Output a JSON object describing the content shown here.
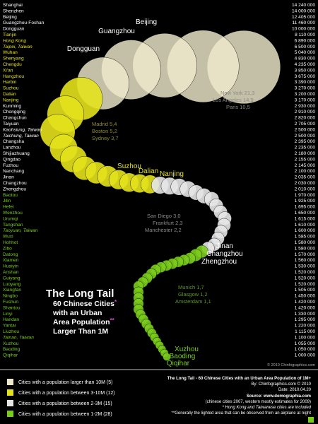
{
  "header": {
    "title": "The Long Tail",
    "lines": [
      "60 Chinese Cities",
      "with an Urban",
      "Area Population",
      "Larger Than 1M"
    ],
    "marks": [
      "*",
      "**"
    ],
    "credit": "© 2010 Chinfographics.com"
  },
  "legend": [
    {
      "label": "Cities with a population larger than 10M (5)",
      "color": "#efe9cc"
    },
    {
      "label": "Cities with a population between 3-10M (12)",
      "color": "#e4e21c"
    },
    {
      "label": "Cities with a population between 2-3M (15)",
      "color": "#e6e6e6"
    },
    {
      "label": "Cities with a population between 1-2M (28)",
      "color": "#7acc1c"
    }
  ],
  "cities": [
    {
      "name": "Shanghai",
      "population": 14240000,
      "label": "14 240 000",
      "group": 0
    },
    {
      "name": "Shenzhen",
      "population": 14000000,
      "label": "14 000 000",
      "group": 0
    },
    {
      "name": "Beijing",
      "population": 12405000,
      "label": "12 405 000",
      "group": 0
    },
    {
      "name": "Guangzhou-Foshan",
      "population": 11460000,
      "label": "11 460 000",
      "group": 0
    },
    {
      "name": "Dongguan",
      "population": 10000000,
      "label": "10 000 000",
      "group": 0
    },
    {
      "name": "Tianjin",
      "population": 8110000,
      "label": "8 110 000",
      "group": 1
    },
    {
      "name": "Hong Kong",
      "population": 6890000,
      "label": "6 890 000",
      "group": 1,
      "italic": true
    },
    {
      "name": "Taipei, Taiwan",
      "population": 6500000,
      "label": "6 500 000",
      "group": 1,
      "italic": true
    },
    {
      "name": "Wuhan",
      "population": 5040000,
      "label": "5 040 000",
      "group": 1
    },
    {
      "name": "Shenyang",
      "population": 4830000,
      "label": "4 830 000",
      "group": 1
    },
    {
      "name": "Chengdu",
      "population": 4235000,
      "label": "4 235 000",
      "group": 1
    },
    {
      "name": "Xi'an",
      "population": 3850000,
      "label": "3 850 000",
      "group": 1
    },
    {
      "name": "Hangzhou",
      "population": 3675000,
      "label": "3 675 000",
      "group": 1
    },
    {
      "name": "Harbin",
      "population": 3390000,
      "label": "3 390 000",
      "group": 1
    },
    {
      "name": "Suzhou",
      "population": 3270000,
      "label": "3 270 000",
      "group": 1
    },
    {
      "name": "Dalian",
      "population": 3200000,
      "label": "3 200 000",
      "group": 1
    },
    {
      "name": "Nanjing",
      "population": 3170000,
      "label": "3 170 000",
      "group": 1
    },
    {
      "name": "Kunming",
      "population": 2930000,
      "label": "2 930 000",
      "group": 2
    },
    {
      "name": "Chongqing",
      "population": 2910000,
      "label": "2 910 000",
      "group": 2
    },
    {
      "name": "Changchun",
      "population": 2820000,
      "label": "2 820 000",
      "group": 2
    },
    {
      "name": "Taiyuan",
      "population": 2705000,
      "label": "2 705 000",
      "group": 2
    },
    {
      "name": "Kaohsiung, Taiwan",
      "population": 2500000,
      "label": "2 500 000",
      "group": 2,
      "italic": true
    },
    {
      "name": "Taichung, Taiwan",
      "population": 2500000,
      "label": "2 500 000",
      "group": 2,
      "italic": true
    },
    {
      "name": "Changsha",
      "population": 2395000,
      "label": "2 395 000",
      "group": 2
    },
    {
      "name": "Lanzhou",
      "population": 2235000,
      "label": "2 235 000",
      "group": 2
    },
    {
      "name": "Shijiazhuang",
      "population": 2180000,
      "label": "2 180 000",
      "group": 2
    },
    {
      "name": "Qingdao",
      "population": 2155000,
      "label": "2 155 000",
      "group": 2
    },
    {
      "name": "Fuzhou",
      "population": 2145000,
      "label": "2 145 000",
      "group": 2
    },
    {
      "name": "Nanchang",
      "population": 2100000,
      "label": "2 100 000",
      "group": 2
    },
    {
      "name": "Jinan",
      "population": 2035000,
      "label": "2 035 000",
      "group": 2
    },
    {
      "name": "Changzhou",
      "population": 2030000,
      "label": "2 030 000",
      "group": 2
    },
    {
      "name": "Zhengzhou",
      "population": 2010000,
      "label": "2 010 000",
      "group": 2
    },
    {
      "name": "Baotou",
      "population": 1970000,
      "label": "1 970 000",
      "group": 3
    },
    {
      "name": "Jilin",
      "population": 1925000,
      "label": "1 925 000",
      "group": 3
    },
    {
      "name": "Hefei",
      "population": 1695000,
      "label": "1 695 000",
      "group": 3
    },
    {
      "name": "Wenzhou",
      "population": 1650000,
      "label": "1 650 000",
      "group": 3
    },
    {
      "name": "Urumqi",
      "population": 1615000,
      "label": "1 615 000",
      "group": 3
    },
    {
      "name": "Tangshan",
      "population": 1610000,
      "label": "1 610 000",
      "group": 3
    },
    {
      "name": "Taoyuan, Taiwan",
      "population": 1600000,
      "label": "1 600 000",
      "group": 3,
      "italic": true
    },
    {
      "name": "Wuxi",
      "population": 1585000,
      "label": "1 585 000",
      "group": 3
    },
    {
      "name": "Hohhot",
      "population": 1580000,
      "label": "1 580 000",
      "group": 3
    },
    {
      "name": "Zibo",
      "population": 1580000,
      "label": "1 580 000",
      "group": 3
    },
    {
      "name": "Datong",
      "population": 1570000,
      "label": "1 570 000",
      "group": 3
    },
    {
      "name": "Xiamen",
      "population": 1560000,
      "label": "1 560 000",
      "group": 3
    },
    {
      "name": "Huaiyin",
      "population": 1530000,
      "label": "1 530 000",
      "group": 3
    },
    {
      "name": "Anshan",
      "population": 1520000,
      "label": "1 520 000",
      "group": 3
    },
    {
      "name": "Guiyang",
      "population": 1520000,
      "label": "1 520 000",
      "group": 3
    },
    {
      "name": "Luoyang",
      "population": 1520000,
      "label": "1 520 000",
      "group": 3
    },
    {
      "name": "Xiangfan",
      "population": 1505000,
      "label": "1 505 000",
      "group": 3
    },
    {
      "name": "Ningbo",
      "population": 1450000,
      "label": "1 450 000",
      "group": 3
    },
    {
      "name": "Fushun",
      "population": 1420000,
      "label": "1 420 000",
      "group": 3
    },
    {
      "name": "Shantou",
      "population": 1420000,
      "label": "1 420 000",
      "group": 3
    },
    {
      "name": "Linyi",
      "population": 1330000,
      "label": "1 330 000",
      "group": 3
    },
    {
      "name": "Handan",
      "population": 1295000,
      "label": "1 295 000",
      "group": 3
    },
    {
      "name": "Yantai",
      "population": 1220000,
      "label": "1 220 000",
      "group": 3
    },
    {
      "name": "Liuzhou",
      "population": 1115000,
      "label": "1 115 000",
      "group": 3
    },
    {
      "name": "Tainan, Taiwan",
      "population": 1100000,
      "label": "1 100 000",
      "group": 3,
      "italic": true
    },
    {
      "name": "Xuzhou",
      "population": 1055000,
      "label": "1 055 000",
      "group": 3
    },
    {
      "name": "Baoding",
      "population": 1050000,
      "label": "1 050 000",
      "group": 3
    },
    {
      "name": "Qiqihar",
      "population": 1000000,
      "label": "1 000 000",
      "group": 3
    }
  ],
  "bubble_labels": [
    "Beijing",
    "Guangzhou",
    "Dongguan",
    "Suzhou",
    "Dalian",
    "Nanjing",
    "Jinan",
    "Changzhou",
    "Zhengzhou",
    "Xuzhou",
    "Baoding",
    "Qiqihar"
  ],
  "comparisons": [
    [
      "New York 21,3",
      "Los Angeles 14,9",
      "Paris 10,5"
    ],
    [
      "Madrid 5,4",
      "Boston 5,2",
      "Sydney 3,7"
    ],
    [
      "San Diego 3,0",
      "Frankfurt 2,3",
      "Manchester 2,2"
    ],
    [
      "Munich 1,7",
      "Glasgow 1,2",
      "Amsterdam 1,1"
    ]
  ],
  "footer": {
    "title": "The Long Tail - 60 Chinese Cities with an Urban Area Population of 1M+",
    "by": "By: Chinfographics.com © 2010",
    "date": "Date: 2010.04.20",
    "source": "Source: www.demographia.com",
    "source_note": "(chinese cities 2007, western mostly estimates for 2009)",
    "note1": "* Hong Kong and Taiwanese cities are included",
    "note2": "**Generally the lighted area that can be observed from an airplane at night"
  }
}
